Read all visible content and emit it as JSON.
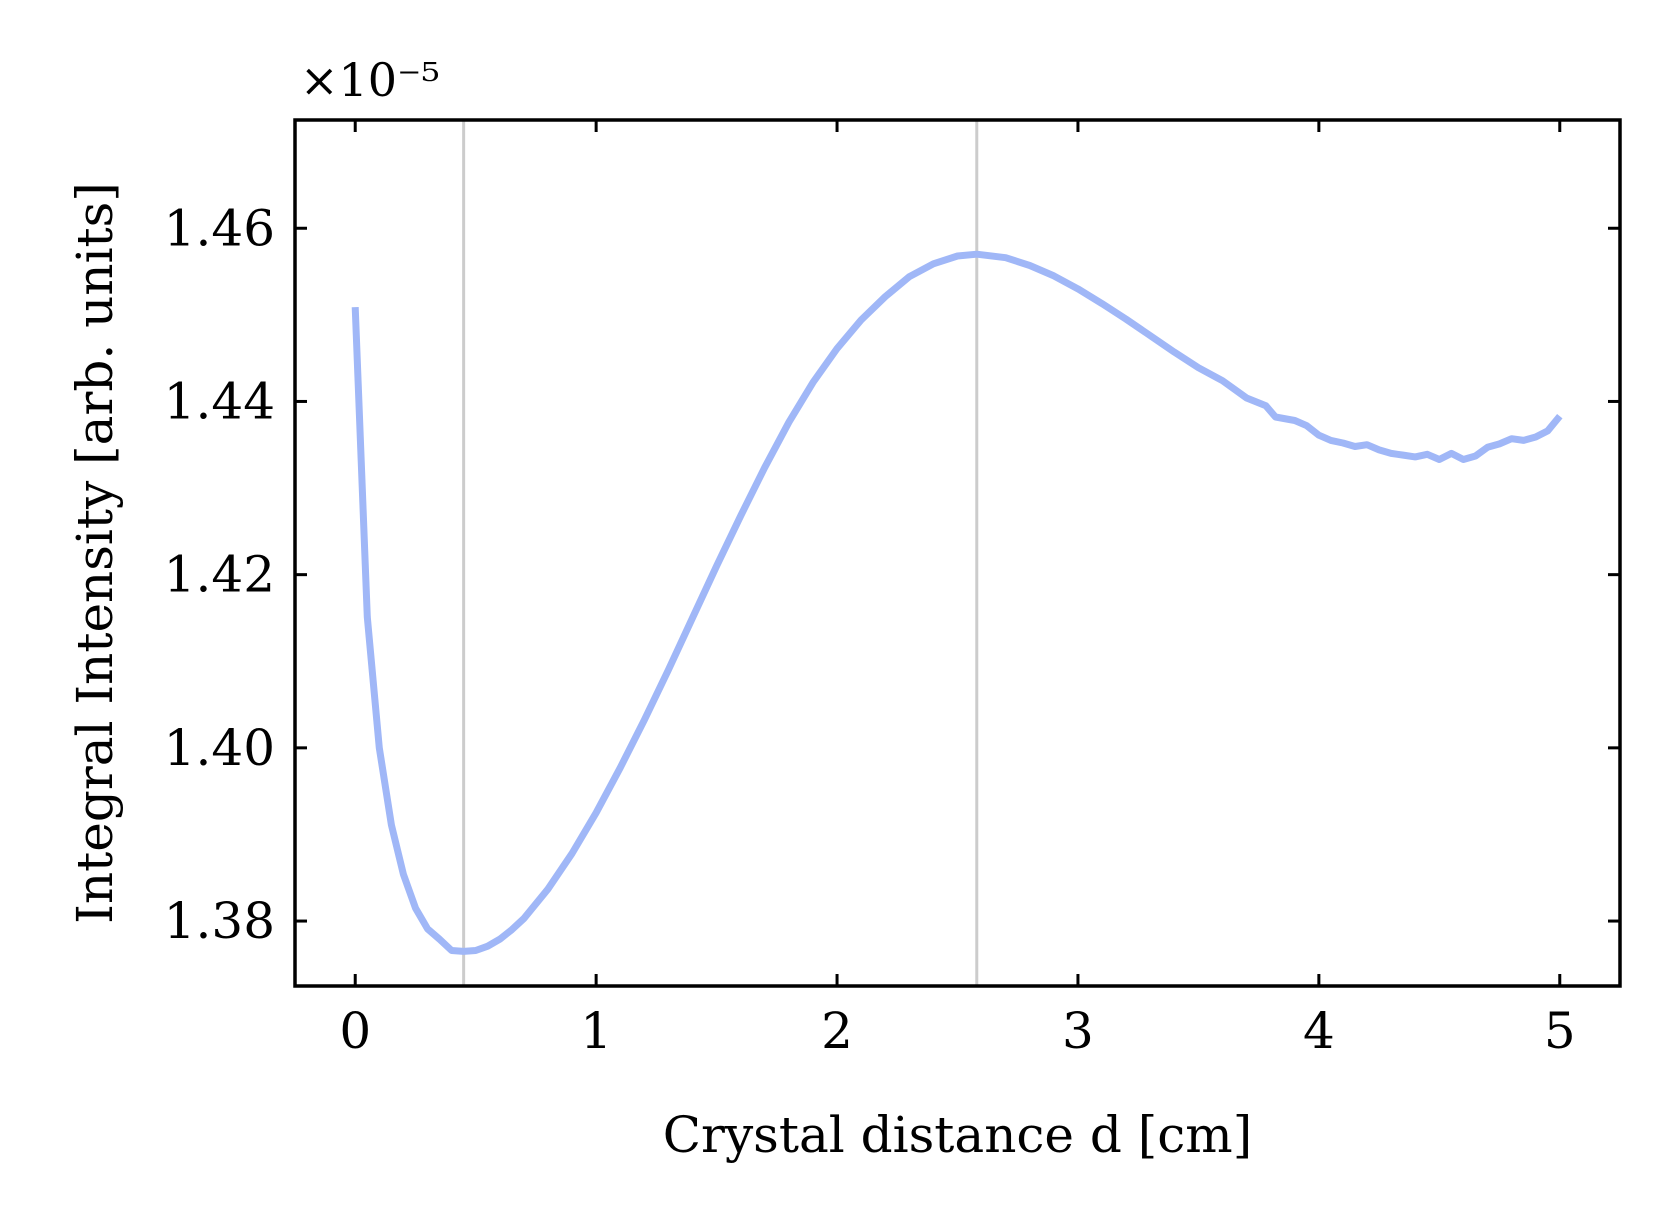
{
  "chart_data": {
    "type": "line",
    "title": "",
    "xlabel": "Crystal distance d [cm]",
    "ylabel": "Integral Intensity [arb. units]",
    "y_multiplier": "×10⁻⁵",
    "xlim": [
      -0.25,
      5.25
    ],
    "ylim": [
      1.3725,
      1.4725
    ],
    "x_ticks": [
      0,
      1,
      2,
      3,
      4,
      5
    ],
    "x_tick_labels": [
      "0",
      "1",
      "2",
      "3",
      "4",
      "5"
    ],
    "y_ticks": [
      1.38,
      1.4,
      1.42,
      1.44,
      1.46
    ],
    "y_tick_labels": [
      "1.38",
      "1.40",
      "1.42",
      "1.44",
      "1.46"
    ],
    "grid": false,
    "vertical_reference_lines": [
      0.45,
      2.58
    ],
    "colors": {
      "line": "#a0b7f7",
      "reference_line": "#cccccc",
      "axes": "#000000"
    },
    "series": [
      {
        "x": [
          0.0,
          0.05,
          0.1,
          0.15,
          0.2,
          0.25,
          0.3,
          0.35,
          0.4,
          0.45,
          0.5,
          0.55,
          0.6,
          0.65,
          0.7,
          0.8,
          0.9,
          1.0,
          1.1,
          1.2,
          1.3,
          1.4,
          1.5,
          1.6,
          1.7,
          1.8,
          1.9,
          2.0,
          2.1,
          2.2,
          2.3,
          2.4,
          2.5,
          2.58,
          2.7,
          2.8,
          2.9,
          3.0,
          3.1,
          3.2,
          3.3,
          3.4,
          3.5,
          3.6,
          3.7,
          3.78,
          3.82,
          3.9,
          3.95,
          4.0,
          4.05,
          4.1,
          4.15,
          4.2,
          4.25,
          4.3,
          4.35,
          4.4,
          4.45,
          4.5,
          4.55,
          4.6,
          4.65,
          4.7,
          4.75,
          4.8,
          4.85,
          4.9,
          4.95,
          5.0
        ],
        "y": [
          1.4509,
          1.4151,
          1.4,
          1.3911,
          1.3854,
          1.3815,
          1.3791,
          1.3779,
          1.3766,
          1.3765,
          1.3766,
          1.3771,
          1.3779,
          1.379,
          1.3803,
          1.3837,
          1.3878,
          1.3925,
          1.3977,
          1.4032,
          1.409,
          1.415,
          1.421,
          1.4268,
          1.4324,
          1.4376,
          1.4422,
          1.4461,
          1.4494,
          1.4521,
          1.4544,
          1.4559,
          1.4568,
          1.457,
          1.4566,
          1.4557,
          1.4545,
          1.453,
          1.4513,
          1.4495,
          1.4476,
          1.4457,
          1.4439,
          1.4424,
          1.4404,
          1.4395,
          1.4382,
          1.4378,
          1.4372,
          1.4361,
          1.4355,
          1.4352,
          1.4348,
          1.435,
          1.4344,
          1.434,
          1.4338,
          1.4336,
          1.4339,
          1.4333,
          1.434,
          1.4333,
          1.4337,
          1.4347,
          1.4351,
          1.4357,
          1.4355,
          1.4359,
          1.4366,
          1.4383
        ]
      }
    ]
  }
}
